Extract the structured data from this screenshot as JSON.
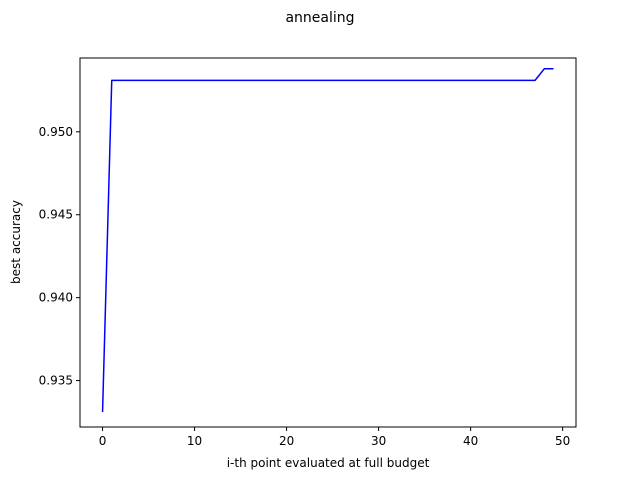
{
  "chart_data": {
    "type": "line",
    "title": "annealing",
    "xlabel": "i-th point evaluated at full budget",
    "ylabel": "best accuracy",
    "xlim": [
      -2.45,
      51.45
    ],
    "ylim": [
      0.9322,
      0.95445
    ],
    "xticks": [
      0,
      10,
      20,
      30,
      40,
      50
    ],
    "xtick_labels": [
      "0",
      "10",
      "20",
      "30",
      "40",
      "50"
    ],
    "yticks": [
      0.935,
      0.94,
      0.945,
      0.95
    ],
    "ytick_labels": [
      "0.935",
      "0.940",
      "0.945",
      "0.950"
    ],
    "grid": false,
    "series": [
      {
        "color": "#0000ff",
        "x": [
          0,
          1,
          2,
          10,
          20,
          30,
          40,
          46,
          47,
          48,
          49
        ],
        "y": [
          0.9331,
          0.9531,
          0.9531,
          0.9531,
          0.9531,
          0.9531,
          0.9531,
          0.9531,
          0.9531,
          0.9538,
          0.9538
        ]
      }
    ]
  }
}
